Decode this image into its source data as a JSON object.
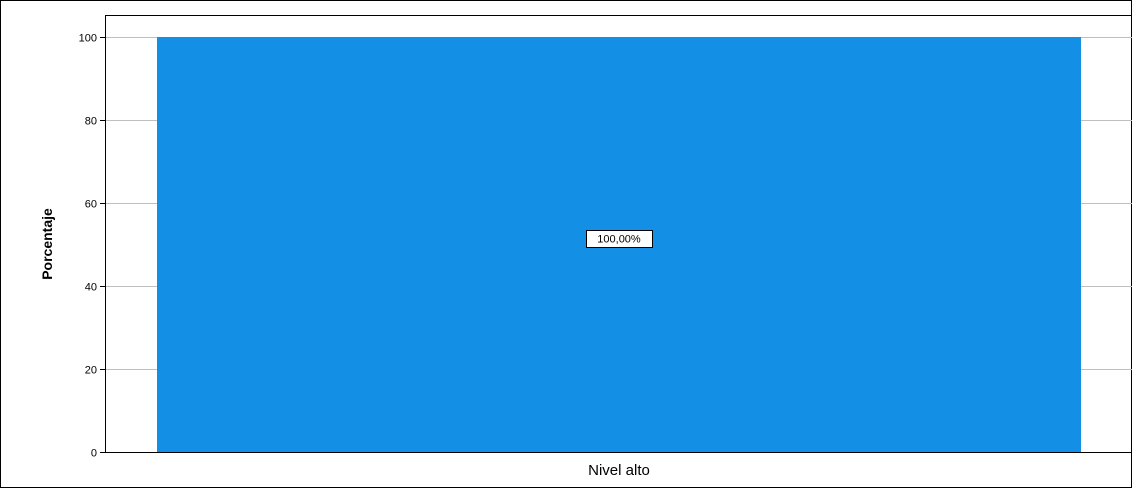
{
  "chart_data": {
    "type": "bar",
    "categories": [
      "Nivel alto"
    ],
    "values": [
      100
    ],
    "data_labels": [
      "100,00%"
    ],
    "title": "",
    "xlabel": "",
    "ylabel": "Porcentaje",
    "ylim": [
      0,
      100
    ],
    "yticks": [
      "0",
      "20",
      "40",
      "60",
      "80",
      "100"
    ],
    "grid": true,
    "legend": "none",
    "bar_color": "#1390E6",
    "grid_color": "#BFBFBF"
  }
}
